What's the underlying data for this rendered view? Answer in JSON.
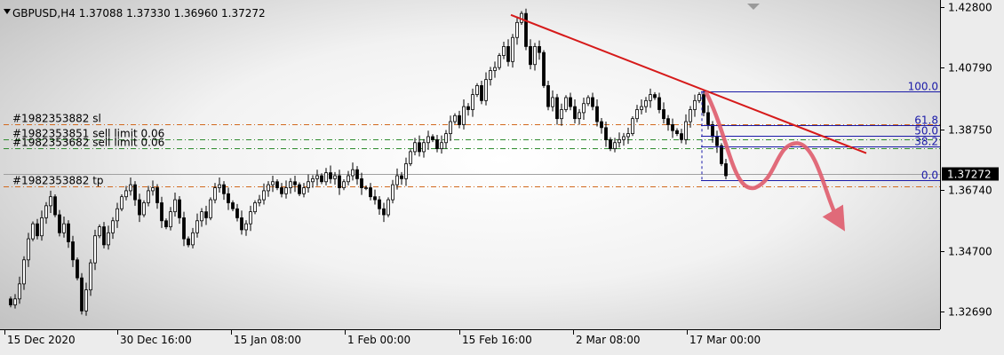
{
  "chart_data": {
    "type": "candlestick",
    "symbol_header": "GBPUSD,H4  1.37088 1.37330 1.36960 1.37272",
    "price_axis": {
      "ylim": [
        1.3209,
        1.4293
      ],
      "ticks": [
        "1.42800",
        "1.40790",
        "1.38750",
        "1.36740",
        "1.34700",
        "1.32690"
      ],
      "tick_values": [
        1.428,
        1.4079,
        1.3875,
        1.3674,
        1.347,
        1.3269
      ],
      "current_price": "1.37272",
      "current_value": 1.37272
    },
    "time_axis": {
      "labels": [
        "15 Dec 2020",
        "30 Dec 16:00",
        "15 Jan 08:00",
        "1 Feb 00:00",
        "15 Feb 16:00",
        "2 Mar 08:00",
        "17 Mar 00:00"
      ]
    },
    "price_path": [
      1.329,
      1.331,
      1.336,
      1.344,
      1.351,
      1.356,
      1.352,
      1.358,
      1.362,
      1.365,
      1.359,
      1.353,
      1.356,
      1.35,
      1.344,
      1.338,
      1.327,
      1.334,
      1.343,
      1.352,
      1.355,
      1.349,
      1.353,
      1.357,
      1.361,
      1.365,
      1.367,
      1.369,
      1.364,
      1.359,
      1.363,
      1.367,
      1.368,
      1.363,
      1.357,
      1.355,
      1.36,
      1.364,
      1.358,
      1.351,
      1.349,
      1.353,
      1.357,
      1.36,
      1.358,
      1.364,
      1.368,
      1.369,
      1.366,
      1.363,
      1.361,
      1.358,
      1.354,
      1.356,
      1.36,
      1.363,
      1.364,
      1.367,
      1.369,
      1.37,
      1.368,
      1.366,
      1.368,
      1.37,
      1.369,
      1.366,
      1.368,
      1.37,
      1.371,
      1.372,
      1.37,
      1.373,
      1.371,
      1.372,
      1.368,
      1.37,
      1.372,
      1.374,
      1.371,
      1.368,
      1.368,
      1.365,
      1.364,
      1.361,
      1.359,
      1.364,
      1.369,
      1.372,
      1.371,
      1.376,
      1.38,
      1.383,
      1.38,
      1.383,
      1.385,
      1.384,
      1.381,
      1.383,
      1.386,
      1.39,
      1.392,
      1.389,
      1.395,
      1.394,
      1.399,
      1.402,
      1.397,
      1.404,
      1.407,
      1.408,
      1.412,
      1.415,
      1.41,
      1.418,
      1.423,
      1.426,
      1.415,
      1.409,
      1.415,
      1.413,
      1.402,
      1.395,
      1.398,
      1.391,
      1.394,
      1.398,
      1.395,
      1.391,
      1.393,
      1.396,
      1.398,
      1.395,
      1.39,
      1.388,
      1.384,
      1.381,
      1.383,
      1.384,
      1.385,
      1.386,
      1.391,
      1.394,
      1.395,
      1.397,
      1.399,
      1.398,
      1.394,
      1.391,
      1.389,
      1.387,
      1.386,
      1.384,
      1.39,
      1.394,
      1.397,
      1.399,
      1.393,
      1.389,
      1.385,
      1.382,
      1.376,
      1.372
    ],
    "horizontal_levels": [
      {
        "label": "#1982353882 sl",
        "value": 1.3891,
        "style": "stop-loss"
      },
      {
        "label": "#1982353851 sell limit 0.06",
        "value": 1.3842,
        "style": "order"
      },
      {
        "label": "#1982353682 sell limit 0.06",
        "value": 1.3812,
        "style": "order"
      },
      {
        "label": "#1982353882 tp",
        "value": 1.3684,
        "style": "take-profit"
      }
    ],
    "fibonacci": [
      {
        "label": "100.0",
        "value": 1.4
      },
      {
        "label": "61.8",
        "value": 1.3888
      },
      {
        "label": "50.0",
        "value": 1.3853
      },
      {
        "label": "38.2",
        "value": 1.3818
      },
      {
        "label": "0.0",
        "value": 1.3705
      }
    ],
    "trendline": {
      "from_bar": 113,
      "from_value": 1.4255,
      "to_bar": 165,
      "to_value": 1.3795
    }
  }
}
